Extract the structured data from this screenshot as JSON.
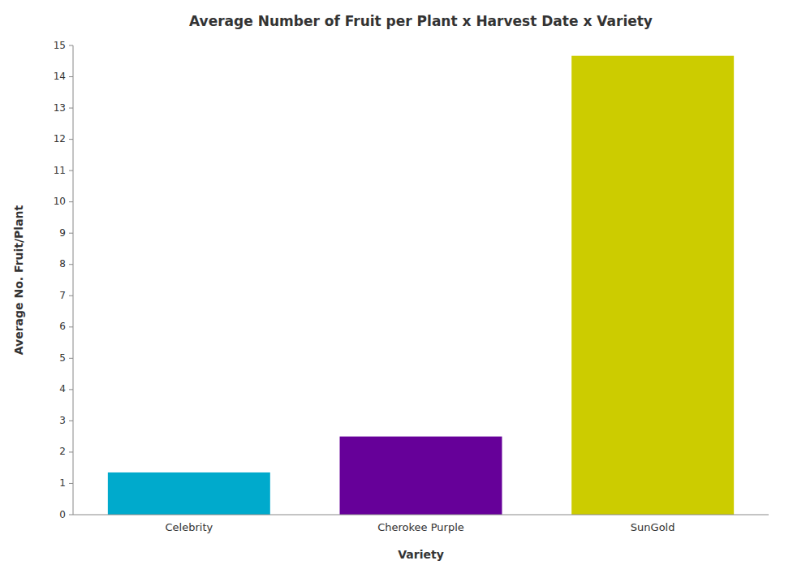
{
  "chart_data": {
    "type": "bar",
    "title": "Average Number of Fruit per Plant x Harvest Date x Variety",
    "xlabel": "Variety",
    "ylabel": "Average No. Fruit/Plant",
    "categories": [
      "Celebrity",
      "Cherokee Purple",
      "SunGold"
    ],
    "values": [
      1.35,
      2.5,
      14.67
    ],
    "colors": [
      "#00AACC",
      "#660099",
      "#CCCC00"
    ],
    "ylim": [
      0,
      15
    ],
    "yticks": [
      0,
      1,
      2,
      3,
      4,
      5,
      6,
      7,
      8,
      9,
      10,
      11,
      12,
      13,
      14,
      15
    ],
    "grid": false
  }
}
